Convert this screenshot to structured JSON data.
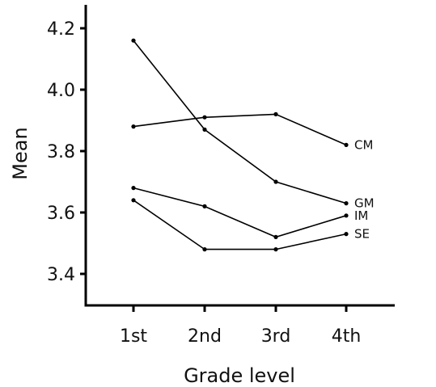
{
  "chart_data": {
    "type": "line",
    "xlabel": "Grade level",
    "ylabel": "Mean",
    "categories": [
      "1st",
      "2nd",
      "3rd",
      "4th"
    ],
    "ylim": [
      3.32,
      4.28
    ],
    "yticks": [
      3.4,
      3.6,
      3.8,
      4.0,
      4.2
    ],
    "ytick_labels": [
      "3.4",
      "3.6",
      "3.8",
      "4.0",
      "4.2"
    ],
    "grid": false,
    "legend": "direct labels at line ends",
    "series": [
      {
        "name": "CM",
        "values": [
          3.88,
          3.91,
          3.92,
          3.82
        ]
      },
      {
        "name": "GM",
        "values": [
          4.16,
          3.87,
          3.7,
          3.63
        ]
      },
      {
        "name": "IM",
        "values": [
          3.68,
          3.62,
          3.52,
          3.59
        ]
      },
      {
        "name": "SE",
        "values": [
          3.64,
          3.48,
          3.48,
          3.53
        ]
      }
    ]
  }
}
